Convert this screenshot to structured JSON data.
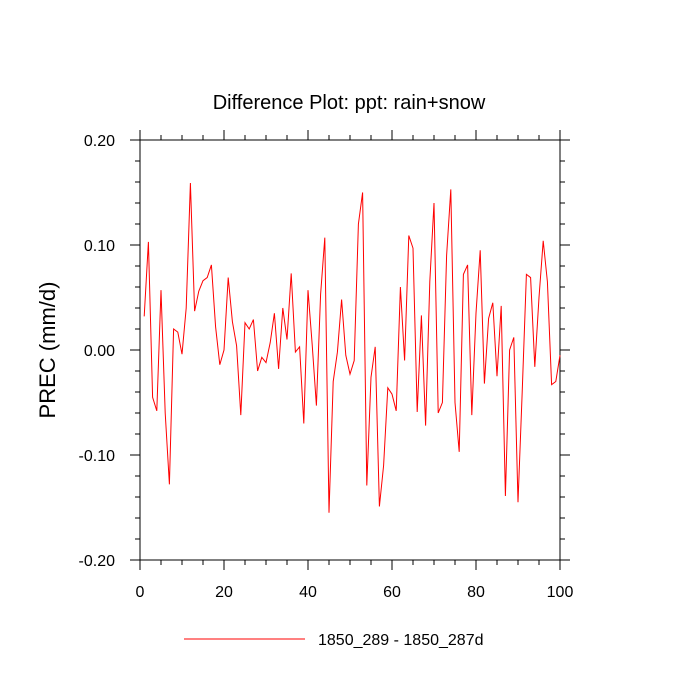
{
  "chart_data": {
    "type": "line",
    "title": "Difference Plot: ppt: rain+snow",
    "xlabel": "",
    "ylabel": "PREC  (mm/d)",
    "xlim": [
      0,
      100
    ],
    "ylim": [
      -0.2,
      0.2
    ],
    "x_ticks": [
      0,
      20,
      40,
      60,
      80,
      100
    ],
    "x_tick_labels": [
      "0",
      "20",
      "40",
      "60",
      "80",
      "100"
    ],
    "y_ticks": [
      -0.2,
      -0.1,
      0.0,
      0.1,
      0.2
    ],
    "y_tick_labels": [
      "-0.20",
      "-0.10",
      "0.00",
      "0.10",
      "0.20"
    ],
    "grid": false,
    "legend_position": "bottom-center",
    "series": [
      {
        "name": "1850_289 - 1850_287d",
        "color": "#ff0000",
        "x": [
          1,
          2,
          3,
          4,
          5,
          6,
          7,
          8,
          9,
          10,
          11,
          12,
          13,
          14,
          15,
          16,
          17,
          18,
          19,
          20,
          21,
          22,
          23,
          24,
          25,
          26,
          27,
          28,
          29,
          30,
          31,
          32,
          33,
          34,
          35,
          36,
          37,
          38,
          39,
          40,
          41,
          42,
          43,
          44,
          45,
          46,
          47,
          48,
          49,
          50,
          51,
          52,
          53,
          54,
          55,
          56,
          57,
          58,
          59,
          60,
          61,
          62,
          63,
          64,
          65,
          66,
          67,
          68,
          69,
          70,
          71,
          72,
          73,
          74,
          75,
          76,
          77,
          78,
          79,
          80,
          81,
          82,
          83,
          84,
          85,
          86,
          87,
          88,
          89,
          90,
          91,
          92,
          93,
          94,
          95,
          96,
          97,
          98,
          99,
          100
        ],
        "values": [
          0.032,
          0.103,
          -0.045,
          -0.058,
          0.057,
          -0.06,
          -0.128,
          0.02,
          0.017,
          -0.004,
          0.04,
          0.159,
          0.037,
          0.056,
          0.066,
          0.069,
          0.081,
          0.022,
          -0.014,
          0.0,
          0.069,
          0.027,
          0.004,
          -0.062,
          0.026,
          0.02,
          0.029,
          -0.02,
          -0.007,
          -0.012,
          0.007,
          0.035,
          -0.018,
          0.04,
          0.01,
          0.073,
          -0.002,
          0.003,
          -0.07,
          0.057,
          0.005,
          -0.053,
          0.053,
          0.107,
          -0.155,
          -0.03,
          -0.002,
          0.048,
          -0.005,
          -0.023,
          -0.01,
          0.12,
          0.15,
          -0.129,
          -0.026,
          0.003,
          -0.149,
          -0.11,
          -0.036,
          -0.042,
          -0.058,
          0.06,
          -0.01,
          0.109,
          0.097,
          -0.059,
          0.033,
          -0.072,
          0.065,
          0.14,
          -0.06,
          -0.05,
          0.09,
          0.153,
          -0.05,
          -0.097,
          0.072,
          0.081,
          -0.062,
          0.035,
          0.095,
          -0.032,
          0.03,
          0.045,
          -0.025,
          0.042,
          -0.139,
          0.0,
          0.012,
          -0.145,
          -0.04,
          0.072,
          0.069,
          -0.016,
          0.05,
          0.104,
          0.065,
          -0.033,
          -0.03,
          -0.005
        ]
      }
    ]
  }
}
